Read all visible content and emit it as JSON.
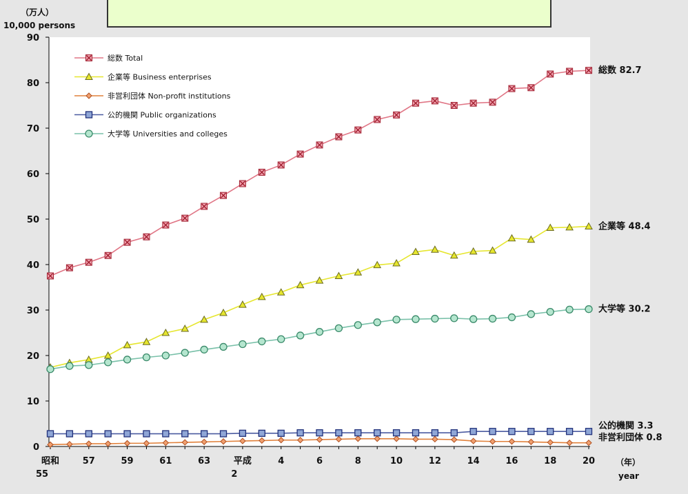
{
  "chart_data": {
    "type": "line",
    "y_unit_ja": "（万人）",
    "y_unit_en": "10,000 persons",
    "x_unit_ja": "（年）",
    "x_unit_en": "year",
    "ylim": [
      0,
      90
    ],
    "yticks": [
      0,
      10,
      20,
      30,
      40,
      50,
      60,
      70,
      80,
      90
    ],
    "x": [
      "昭和55",
      "56",
      "57",
      "58",
      "59",
      "60",
      "61",
      "62",
      "63",
      "平成元",
      "2",
      "3",
      "4",
      "5",
      "6",
      "7",
      "8",
      "9",
      "10",
      "11",
      "12",
      "13",
      "14",
      "15",
      "16",
      "17",
      "18",
      "19",
      "20"
    ],
    "xtick_labels": [
      {
        "i": 0,
        "top": "昭和",
        "bottom": "55"
      },
      {
        "i": 2,
        "top": "57",
        "bottom": ""
      },
      {
        "i": 4,
        "top": "59",
        "bottom": ""
      },
      {
        "i": 6,
        "top": "61",
        "bottom": ""
      },
      {
        "i": 8,
        "top": "63",
        "bottom": ""
      },
      {
        "i": 10,
        "top": "平成",
        "bottom": "2"
      },
      {
        "i": 12,
        "top": "4",
        "bottom": ""
      },
      {
        "i": 14,
        "top": "6",
        "bottom": ""
      },
      {
        "i": 16,
        "top": "8",
        "bottom": ""
      },
      {
        "i": 18,
        "top": "10",
        "bottom": ""
      },
      {
        "i": 20,
        "top": "12",
        "bottom": ""
      },
      {
        "i": 22,
        "top": "14",
        "bottom": ""
      },
      {
        "i": 24,
        "top": "16",
        "bottom": ""
      },
      {
        "i": 26,
        "top": "18",
        "bottom": ""
      },
      {
        "i": 28,
        "top": "20",
        "bottom": ""
      }
    ],
    "legend_placement": "top-left",
    "grid": false,
    "series": [
      {
        "key": "total",
        "name": "総数 Total",
        "color": "#e07585",
        "marker": "boxx",
        "marker_fill": "#f3a3b0",
        "marker_stroke": "#a02030",
        "end_label": "総数 82.7",
        "values": [
          37.5,
          39.3,
          40.5,
          42.0,
          44.9,
          46.1,
          48.7,
          50.2,
          52.8,
          55.2,
          57.8,
          60.3,
          61.9,
          64.3,
          66.3,
          68.1,
          69.6,
          71.9,
          72.9,
          75.5,
          76.0,
          75.0,
          75.5,
          75.7,
          78.7,
          78.9,
          81.9,
          82.5,
          82.7
        ]
      },
      {
        "key": "business",
        "name": "企業等 Business enterprises",
        "color": "#e6e62e",
        "marker": "triangle",
        "marker_fill": "#e6e62e",
        "marker_stroke": "#6a6a20",
        "end_label": "企業等 48.4",
        "values": [
          17.4,
          18.4,
          19.1,
          20.0,
          22.3,
          23.0,
          25.0,
          25.9,
          27.9,
          29.4,
          31.2,
          32.9,
          33.9,
          35.5,
          36.5,
          37.5,
          38.3,
          39.9,
          40.3,
          42.8,
          43.3,
          42.0,
          42.9,
          43.1,
          45.8,
          45.5,
          48.1,
          48.2,
          48.4
        ]
      },
      {
        "key": "nonprofit",
        "name": "非営利団体 Non-profit institutions",
        "color": "#e0803a",
        "marker": "diamond",
        "marker_fill": "#f0a070",
        "marker_stroke": "#b05020",
        "end_label": "非営利団体 0.8",
        "values": [
          0.4,
          0.5,
          0.6,
          0.6,
          0.7,
          0.7,
          0.8,
          0.9,
          1.0,
          1.1,
          1.2,
          1.3,
          1.4,
          1.4,
          1.5,
          1.6,
          1.7,
          1.7,
          1.7,
          1.6,
          1.6,
          1.5,
          1.2,
          1.1,
          1.1,
          1.0,
          0.9,
          0.8,
          0.8
        ]
      },
      {
        "key": "public",
        "name": "公的機関 Public organizations",
        "color": "#4a5aa0",
        "marker": "square",
        "marker_fill": "#8fa6d6",
        "marker_stroke": "#20307a",
        "end_label": "公的機関 3.3",
        "values": [
          2.8,
          2.8,
          2.8,
          2.8,
          2.8,
          2.8,
          2.8,
          2.8,
          2.8,
          2.8,
          2.9,
          2.9,
          2.9,
          3.0,
          3.0,
          3.0,
          3.0,
          3.0,
          3.0,
          3.0,
          3.0,
          3.0,
          3.3,
          3.3,
          3.3,
          3.3,
          3.3,
          3.3,
          3.3
        ]
      },
      {
        "key": "university",
        "name": "大学等 Universities and colleges",
        "color": "#78c0a8",
        "marker": "circle",
        "marker_fill": "#b5e6cf",
        "marker_stroke": "#3a8a6a",
        "end_label": "大学等 30.2",
        "values": [
          17.0,
          17.7,
          17.9,
          18.5,
          19.1,
          19.6,
          20.0,
          20.6,
          21.3,
          21.9,
          22.5,
          23.1,
          23.6,
          24.4,
          25.2,
          26.0,
          26.7,
          27.3,
          27.9,
          28.0,
          28.1,
          28.2,
          28.0,
          28.1,
          28.4,
          29.1,
          29.6,
          30.1,
          30.2
        ]
      }
    ]
  }
}
